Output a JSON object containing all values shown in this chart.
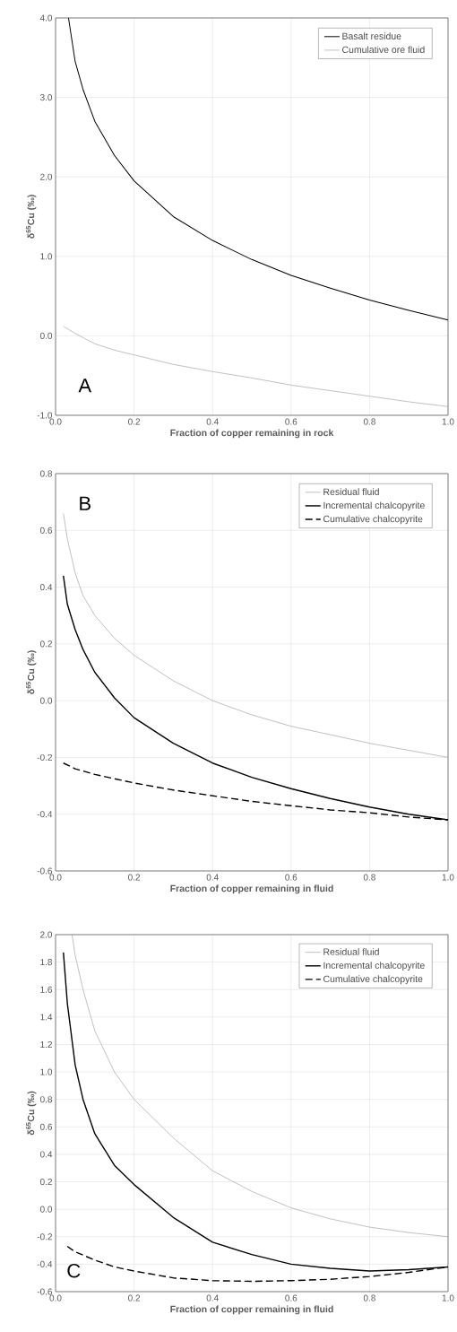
{
  "chart_data": [
    {
      "type": "line",
      "xlabel": "Fraction of copper remaining in rock",
      "ylabel": "δ$^{65}$Cu (‰)",
      "annotations": [
        "A"
      ],
      "grid": true,
      "legend": "top right",
      "line_style": "solid",
      "xlim": [
        0,
        1
      ],
      "ylim": [
        -1,
        4
      ],
      "xticks": [
        {
          "value": 0,
          "label": "0.0"
        },
        {
          "value": 0.2,
          "label": "0.2"
        },
        {
          "value": 0.4,
          "label": "0.4"
        },
        {
          "value": 0.6,
          "label": "0.6"
        },
        {
          "value": 0.8,
          "label": "0.8"
        },
        {
          "value": 1,
          "label": "1.0"
        }
      ],
      "yticks": [
        {
          "value": -1,
          "label": "-1.0"
        },
        {
          "value": 0,
          "label": "0.0"
        },
        {
          "value": 1,
          "label": "1.0"
        },
        {
          "value": 2,
          "label": "2.0"
        },
        {
          "value": 3,
          "label": "3.0"
        },
        {
          "value": 4,
          "label": "4.0"
        }
      ],
      "series": [
        {
          "name": "Basalt residue",
          "color": "#000000",
          "x": [
            0.033,
            0.05,
            0.07,
            0.1,
            0.15,
            0.2,
            0.3,
            0.4,
            0.5,
            0.6,
            0.7,
            0.8,
            0.9,
            1.0
          ],
          "values": [
            4.0,
            3.45,
            3.1,
            2.7,
            2.27,
            1.95,
            1.5,
            1.2,
            0.96,
            0.76,
            0.6,
            0.45,
            0.32,
            0.2
          ]
        },
        {
          "name": "Cumulative ore fluid",
          "color": "#a6a6a6",
          "x": [
            0.02,
            0.05,
            0.1,
            0.15,
            0.2,
            0.3,
            0.4,
            0.5,
            0.6,
            0.7,
            0.8,
            0.9,
            1.0
          ],
          "values": [
            0.12,
            0.03,
            -0.1,
            -0.18,
            -0.24,
            -0.36,
            -0.45,
            -0.53,
            -0.62,
            -0.69,
            -0.76,
            -0.83,
            -0.89
          ]
        }
      ]
    },
    {
      "type": "line",
      "xlabel": "Fraction of copper remaining in fluid",
      "ylabel": "δ$^{65}$Cu (‰)",
      "annotations": [
        "B"
      ],
      "grid": true,
      "legend": "top right",
      "xlim": [
        0,
        1
      ],
      "ylim": [
        -0.6,
        0.8
      ],
      "xticks": [
        {
          "value": 0,
          "label": "0.0"
        },
        {
          "value": 0.2,
          "label": "0.2"
        },
        {
          "value": 0.4,
          "label": "0.4"
        },
        {
          "value": 0.6,
          "label": "0.6"
        },
        {
          "value": 0.8,
          "label": "0.8"
        },
        {
          "value": 1,
          "label": "1.0"
        }
      ],
      "yticks": [
        -0.6,
        -0.4,
        -0.2,
        {
          "value": 0,
          "label": "0.0"
        },
        0.2,
        0.4,
        0.6,
        0.8
      ],
      "series": [
        {
          "name": "Residual fluid",
          "color": "#a6a6a6",
          "line_style": "solid",
          "x": [
            0.02,
            0.03,
            0.05,
            0.07,
            0.1,
            0.15,
            0.2,
            0.3,
            0.4,
            0.5,
            0.6,
            0.7,
            0.8,
            0.9,
            1.0
          ],
          "values": [
            0.66,
            0.57,
            0.45,
            0.37,
            0.3,
            0.22,
            0.16,
            0.07,
            0.0,
            -0.05,
            -0.09,
            -0.12,
            -0.15,
            -0.175,
            -0.2
          ]
        },
        {
          "name": "Incremental chalcopyrite",
          "color": "#000000",
          "line_style": "solid",
          "x": [
            0.02,
            0.03,
            0.05,
            0.07,
            0.1,
            0.15,
            0.2,
            0.3,
            0.4,
            0.5,
            0.6,
            0.7,
            0.8,
            0.9,
            1.0
          ],
          "values": [
            0.44,
            0.34,
            0.25,
            0.18,
            0.1,
            0.01,
            -0.06,
            -0.15,
            -0.22,
            -0.27,
            -0.31,
            -0.345,
            -0.375,
            -0.4,
            -0.42
          ]
        },
        {
          "name": "Cumulative chalcopyrite",
          "color": "#000000",
          "line_style": "dashed",
          "x": [
            0.02,
            0.05,
            0.1,
            0.2,
            0.3,
            0.4,
            0.5,
            0.6,
            0.7,
            0.8,
            0.9,
            1.0
          ],
          "values": [
            -0.22,
            -0.24,
            -0.26,
            -0.29,
            -0.315,
            -0.335,
            -0.355,
            -0.37,
            -0.385,
            -0.395,
            -0.41,
            -0.42
          ]
        }
      ]
    },
    {
      "type": "line",
      "xlabel": "Fraction of copper remaining in fluid",
      "ylabel": "δ$^{65}$Cu (‰)",
      "annotations": [
        "C"
      ],
      "grid": true,
      "legend": "top right",
      "xlim": [
        0,
        1
      ],
      "ylim": [
        -0.6,
        2.0
      ],
      "xticks": [
        {
          "value": 0,
          "label": "0.0"
        },
        {
          "value": 0.2,
          "label": "0.2"
        },
        {
          "value": 0.4,
          "label": "0.4"
        },
        {
          "value": 0.6,
          "label": "0.6"
        },
        {
          "value": 0.8,
          "label": "0.8"
        },
        {
          "value": 1,
          "label": "1.0"
        }
      ],
      "yticks": [
        -0.6,
        -0.4,
        -0.2,
        {
          "value": 0,
          "label": "0.0"
        },
        0.2,
        0.4,
        0.6,
        0.8,
        {
          "value": 1,
          "label": "1.0"
        },
        1.2,
        1.4,
        1.6,
        1.8,
        {
          "value": 2,
          "label": "2.0"
        }
      ],
      "series": [
        {
          "name": "Residual fluid",
          "color": "#a6a6a6",
          "line_style": "solid",
          "x": [
            0.042,
            0.05,
            0.07,
            0.1,
            0.15,
            0.2,
            0.3,
            0.4,
            0.5,
            0.6,
            0.7,
            0.8,
            0.9,
            1.0
          ],
          "values": [
            2.0,
            1.85,
            1.6,
            1.3,
            1.0,
            0.8,
            0.52,
            0.28,
            0.13,
            0.01,
            -0.07,
            -0.13,
            -0.17,
            -0.2
          ]
        },
        {
          "name": "Incremental chalcopyrite",
          "color": "#000000",
          "line_style": "solid",
          "x": [
            0.02,
            0.03,
            0.05,
            0.07,
            0.1,
            0.15,
            0.2,
            0.3,
            0.4,
            0.5,
            0.6,
            0.7,
            0.8,
            0.9,
            1.0
          ],
          "values": [
            1.87,
            1.5,
            1.05,
            0.8,
            0.55,
            0.32,
            0.18,
            -0.06,
            -0.24,
            -0.33,
            -0.4,
            -0.43,
            -0.45,
            -0.44,
            -0.42
          ]
        },
        {
          "name": "Cumulative chalcopyrite",
          "color": "#000000",
          "line_style": "dashed",
          "x": [
            0.03,
            0.05,
            0.1,
            0.15,
            0.2,
            0.3,
            0.4,
            0.5,
            0.6,
            0.7,
            0.8,
            0.9,
            1.0
          ],
          "values": [
            -0.27,
            -0.31,
            -0.37,
            -0.42,
            -0.45,
            -0.5,
            -0.52,
            -0.525,
            -0.52,
            -0.51,
            -0.49,
            -0.46,
            -0.42
          ]
        }
      ]
    }
  ]
}
